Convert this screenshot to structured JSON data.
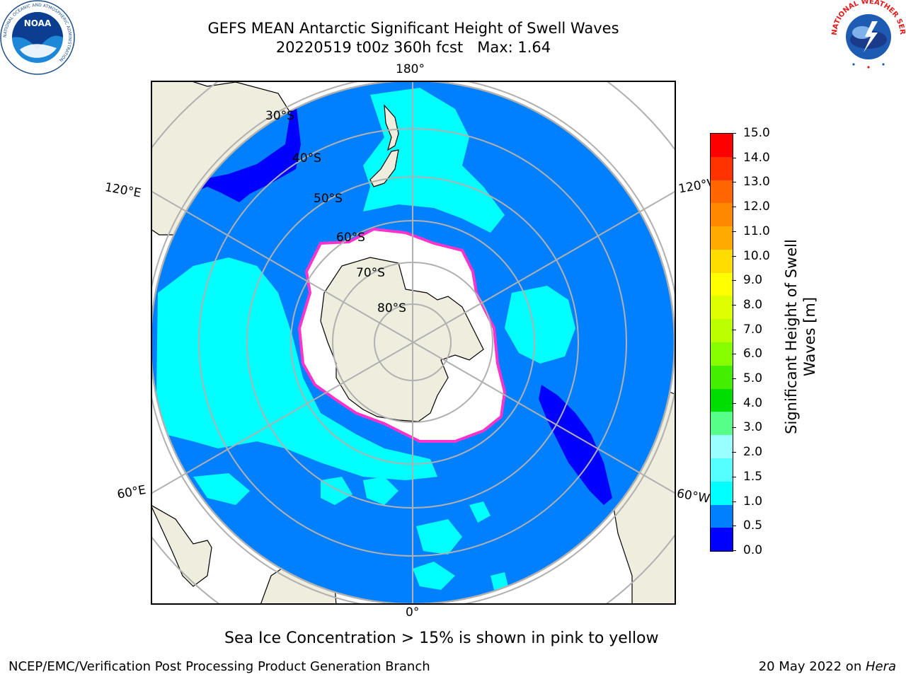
{
  "header": {
    "title_line1": "GEFS MEAN Antarctic Significant Height of Swell Waves",
    "title_line2": "20220519 t00z 360h fcst   Max: 1.64"
  },
  "logos": {
    "noaa": {
      "center_text": "NOAA",
      "ring_text_top": "NATIONAL OCEANIC AND ATMOSPHERIC ADMINISTRATION",
      "ring_text_bottom": "U.S. DEPARTMENT OF COMMERCE"
    },
    "nws": {
      "ring_text": "NATIONAL WEATHER SERVICE"
    }
  },
  "map": {
    "projection": "south-polar-stereographic",
    "longitude_labels": {
      "top": "180°",
      "bottom": "0°",
      "upper_left": "120°E",
      "upper_right": "120°W",
      "lower_left": "60°E",
      "lower_right": "60°W"
    },
    "latitude_labels": [
      "30°S",
      "40°S",
      "50°S",
      "60°S",
      "70°S",
      "80°S"
    ],
    "colors": {
      "ocean_base": "#0080ff",
      "land": "#eeedde",
      "ice_interior": "#ffffff",
      "ice_edge": "#ff33cc",
      "grid": "#b0b0b0"
    }
  },
  "colorbar": {
    "label_line1": "Significant Height of Swell",
    "label_line2": "Waves [m]",
    "ticks": [
      "15.0",
      "14.0",
      "13.0",
      "12.0",
      "11.0",
      "10.0",
      "9.0",
      "8.0",
      "7.0",
      "6.0",
      "5.0",
      "4.0",
      "3.0",
      "2.0",
      "1.5",
      "1.0",
      "0.5",
      "0.0"
    ],
    "colors_top_to_bottom": [
      "#ff0000",
      "#ff3300",
      "#ff6600",
      "#ff8800",
      "#ffaa00",
      "#ffdd00",
      "#ffff00",
      "#ddff00",
      "#bbff00",
      "#88ff00",
      "#44ee00",
      "#00dd00",
      "#55ff88",
      "#99ffff",
      "#55ffff",
      "#00ffff",
      "#0080ff",
      "#0000ff"
    ]
  },
  "note": "Sea Ice Concentration > 15% is shown in pink to yellow",
  "footer": {
    "left": "NCEP/EMC/Verification Post Processing Product Generation Branch",
    "right_prefix": "20 May 2022 on ",
    "right_host": "Hera"
  }
}
